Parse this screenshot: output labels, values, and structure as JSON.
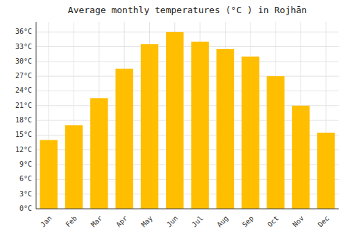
{
  "chart_data": {
    "type": "bar",
    "title": "Average monthly temperatures (°C ) in Rojhān",
    "categories": [
      "Jan",
      "Feb",
      "Mar",
      "Apr",
      "May",
      "Jun",
      "Jul",
      "Aug",
      "Sep",
      "Oct",
      "Nov",
      "Dec"
    ],
    "values": [
      14.0,
      17.0,
      22.5,
      28.5,
      33.5,
      36.0,
      34.0,
      32.5,
      31.0,
      27.0,
      21.0,
      15.5
    ],
    "color": "#FFBE00",
    "ylim": [
      0,
      38
    ],
    "yticks": [
      {
        "value": 0,
        "label": "0°C"
      },
      {
        "value": 3,
        "label": "3°C"
      },
      {
        "value": 6,
        "label": "6°C"
      },
      {
        "value": 9,
        "label": "9°C"
      },
      {
        "value": 12,
        "label": "12°C"
      },
      {
        "value": 15,
        "label": "15°C"
      },
      {
        "value": 18,
        "label": "18°C"
      },
      {
        "value": 21,
        "label": "21°C"
      },
      {
        "value": 24,
        "label": "24°C"
      },
      {
        "value": 27,
        "label": "27°C"
      },
      {
        "value": 30,
        "label": "30°C"
      },
      {
        "value": 33,
        "label": "33°C"
      },
      {
        "value": 36,
        "label": "36°C"
      }
    ],
    "grid": true
  }
}
